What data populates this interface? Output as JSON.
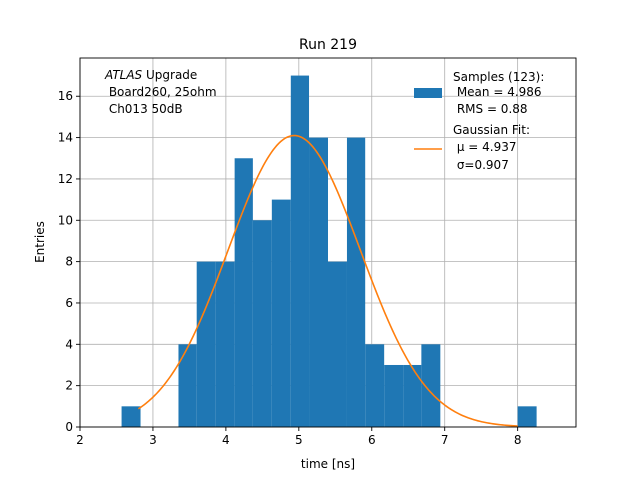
{
  "chart_data": {
    "type": "bar",
    "title": "Run 219",
    "xlabel": "time [ns]",
    "ylabel": "Entries",
    "xlim": [
      2,
      8.8
    ],
    "ylim": [
      0,
      17.85
    ],
    "xticks": [
      2,
      3,
      4,
      5,
      6,
      7,
      8
    ],
    "yticks": [
      0,
      2,
      4,
      6,
      8,
      10,
      12,
      14,
      16
    ],
    "grid": true,
    "legend_placement": "top-right",
    "annotation": {
      "italic": "ATLAS",
      "rest": " Upgrade",
      "line2": " Board260, 25ohm",
      "line3": " Ch013 50dB"
    },
    "histogram": {
      "name": "Samples (123):",
      "stats": [
        " Mean = 4.986",
        " RMS = 0.88"
      ],
      "color": "#1f77b4",
      "bins": [
        {
          "x0": 2.57,
          "x1": 2.83,
          "count": 1
        },
        {
          "x0": 3.35,
          "x1": 3.6,
          "count": 4
        },
        {
          "x0": 3.6,
          "x1": 3.86,
          "count": 8
        },
        {
          "x0": 3.86,
          "x1": 4.12,
          "count": 8
        },
        {
          "x0": 4.12,
          "x1": 4.37,
          "count": 13
        },
        {
          "x0": 4.37,
          "x1": 4.63,
          "count": 10
        },
        {
          "x0": 4.63,
          "x1": 4.89,
          "count": 11
        },
        {
          "x0": 4.89,
          "x1": 5.14,
          "count": 17
        },
        {
          "x0": 5.14,
          "x1": 5.4,
          "count": 14
        },
        {
          "x0": 5.4,
          "x1": 5.66,
          "count": 8
        },
        {
          "x0": 5.66,
          "x1": 5.91,
          "count": 14
        },
        {
          "x0": 5.91,
          "x1": 6.17,
          "count": 4
        },
        {
          "x0": 6.17,
          "x1": 6.43,
          "count": 3
        },
        {
          "x0": 6.43,
          "x1": 6.68,
          "count": 3
        },
        {
          "x0": 6.68,
          "x1": 6.94,
          "count": 4
        },
        {
          "x0": 8.0,
          "x1": 8.26,
          "count": 1
        }
      ]
    },
    "fit": {
      "name": "Gaussian Fit:",
      "label_mu": " μ = 4.937",
      "label_sigma": " σ=0.907",
      "color": "#ff7f0e",
      "amplitude": 14.1,
      "mu": 4.937,
      "sigma": 0.907,
      "x_range": [
        2.8,
        8.0
      ]
    }
  }
}
